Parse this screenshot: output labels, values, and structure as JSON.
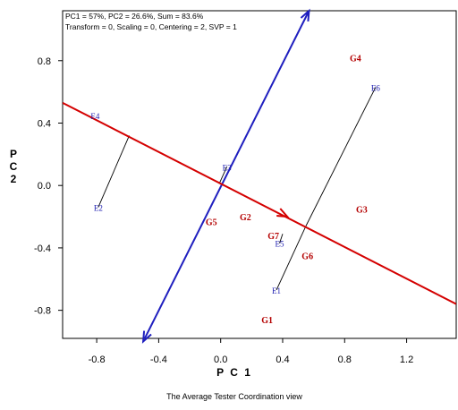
{
  "chart_data": {
    "type": "scatter",
    "title": "The Average Tester Coordination view",
    "info_line1": "PC1 = 57%, PC2 = 26.6%, Sum = 83.6%",
    "info_line2": "Transform = 0, Scaling = 0, Centering = 2, SVP = 1",
    "xlabel": "P C 1",
    "ylabel": "P C 2",
    "xlim": [
      -1.02,
      1.52
    ],
    "ylim": [
      -0.98,
      1.12
    ],
    "xticks": [
      -0.8,
      -0.4,
      0.0,
      0.4,
      0.8,
      1.2
    ],
    "xtick_labels": [
      "-0.8",
      "-0.4",
      "0.0",
      "0.4",
      "0.8",
      "1.2"
    ],
    "yticks": [
      -0.8,
      -0.4,
      0.0,
      0.4,
      0.8
    ],
    "ytick_labels": [
      "-0.8",
      "-0.4",
      "0.0",
      "0.4",
      "0.8"
    ],
    "genotypes": [
      {
        "label": "G1",
        "x": 0.3,
        "y": -0.86
      },
      {
        "label": "G2",
        "x": 0.16,
        "y": -0.2
      },
      {
        "label": "G3",
        "x": 0.91,
        "y": -0.15
      },
      {
        "label": "G4",
        "x": 0.87,
        "y": 0.82
      },
      {
        "label": "G5",
        "x": -0.06,
        "y": -0.23
      },
      {
        "label": "G6",
        "x": 0.56,
        "y": -0.45
      },
      {
        "label": "G7",
        "x": 0.34,
        "y": -0.32
      }
    ],
    "environments": [
      {
        "label": "E1",
        "x": 0.36,
        "y": -0.67
      },
      {
        "label": "E2",
        "x": -0.79,
        "y": -0.14
      },
      {
        "label": "E3",
        "x": 0.04,
        "y": 0.12
      },
      {
        "label": "E4",
        "x": -0.81,
        "y": 0.45
      },
      {
        "label": "E5",
        "x": 0.38,
        "y": -0.37
      },
      {
        "label": "E6",
        "x": 1.0,
        "y": 0.63
      }
    ],
    "ate_axis": {
      "from": [
        -1.02,
        0.53
      ],
      "to": [
        1.52,
        -0.76
      ],
      "arrow_at": [
        0.43,
        -0.2
      ]
    },
    "ate_ordinate": {
      "from": [
        -0.5,
        -1.0
      ],
      "to": [
        0.57,
        1.12
      ]
    },
    "projections": [
      {
        "from": [
          -0.79,
          -0.14
        ],
        "to": [
          -0.59,
          0.32
        ]
      },
      {
        "from": [
          0.36,
          -0.67
        ],
        "to": [
          0.55,
          -0.26
        ]
      },
      {
        "from": [
          1.0,
          0.63
        ],
        "to": [
          0.55,
          -0.26
        ]
      },
      {
        "from": [
          0.38,
          -0.37
        ],
        "to": [
          0.4,
          -0.31
        ]
      },
      {
        "from": [
          0.04,
          0.12
        ],
        "to": [
          -0.01,
          0.01
        ]
      }
    ],
    "colors": {
      "genotype": "#b40000",
      "environment": "#1c1cb0",
      "ate_axis": "#d40000",
      "ate_ordinate": "#1f1fbf",
      "projection": "#000000"
    },
    "grid": false
  }
}
